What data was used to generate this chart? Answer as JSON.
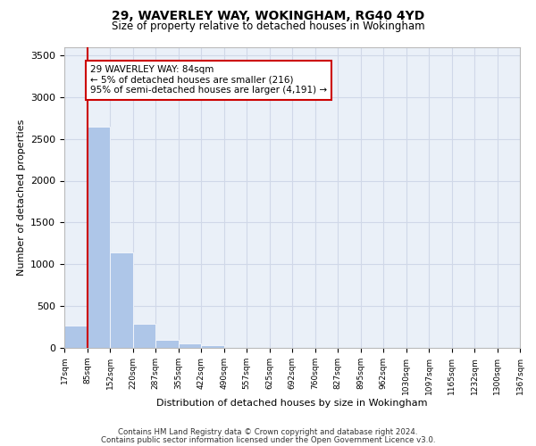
{
  "title_line1": "29, WAVERLEY WAY, WOKINGHAM, RG40 4YD",
  "title_line2": "Size of property relative to detached houses in Wokingham",
  "xlabel": "Distribution of detached houses by size in Wokingham",
  "ylabel": "Number of detached properties",
  "bar_values": [
    270,
    2650,
    1140,
    285,
    95,
    50,
    35,
    0,
    0,
    0,
    0,
    0,
    0,
    0,
    0,
    0,
    0,
    0,
    0,
    0
  ],
  "bin_labels": [
    "17sqm",
    "85sqm",
    "152sqm",
    "220sqm",
    "287sqm",
    "355sqm",
    "422sqm",
    "490sqm",
    "557sqm",
    "625sqm",
    "692sqm",
    "760sqm",
    "827sqm",
    "895sqm",
    "962sqm",
    "1030sqm",
    "1097sqm",
    "1165sqm",
    "1232sqm",
    "1300sqm",
    "1367sqm"
  ],
  "bar_color": "#aec6e8",
  "grid_color": "#d0d8e8",
  "background_color": "#eaf0f8",
  "vline_color": "#cc0000",
  "annotation_box_text": "29 WAVERLEY WAY: 84sqm\n← 5% of detached houses are smaller (216)\n95% of semi-detached houses are larger (4,191) →",
  "ylim": [
    0,
    3600
  ],
  "yticks": [
    0,
    500,
    1000,
    1500,
    2000,
    2500,
    3000,
    3500
  ],
  "footnote_line1": "Contains HM Land Registry data © Crown copyright and database right 2024.",
  "footnote_line2": "Contains public sector information licensed under the Open Government Licence v3.0.",
  "bin_edges": [
    17,
    85,
    152,
    220,
    287,
    355,
    422,
    490,
    557,
    625,
    692,
    760,
    827,
    895,
    962,
    1030,
    1097,
    1165,
    1232,
    1300,
    1367
  ]
}
